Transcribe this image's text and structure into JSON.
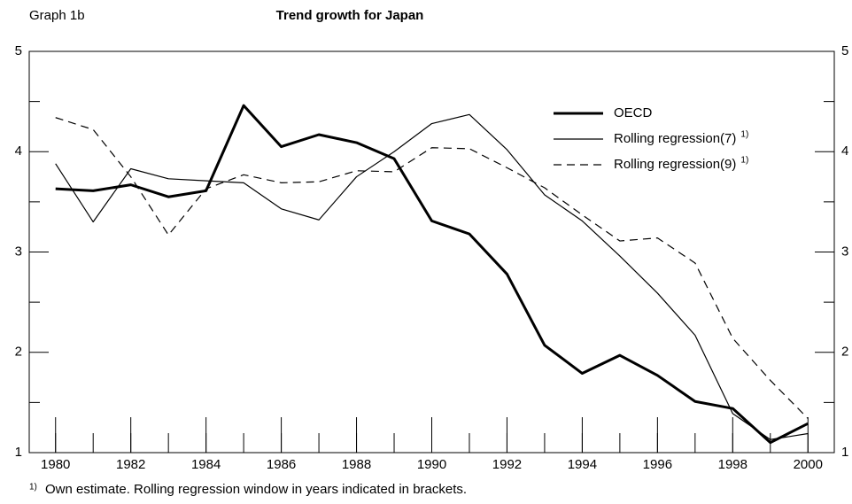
{
  "chart_data": {
    "type": "line",
    "label": "Graph 1b",
    "title": "Trend growth for Japan",
    "x": [
      1980,
      1981,
      1982,
      1983,
      1984,
      1985,
      1986,
      1987,
      1988,
      1989,
      1990,
      1991,
      1992,
      1993,
      1994,
      1995,
      1996,
      1997,
      1998,
      1999,
      2000
    ],
    "series": [
      {
        "name": "OECD",
        "color": "#000000",
        "width": 3,
        "dash": false,
        "values": [
          3.63,
          3.61,
          3.67,
          3.55,
          3.61,
          4.46,
          4.05,
          4.17,
          4.09,
          3.93,
          3.31,
          3.18,
          2.78,
          2.07,
          1.79,
          1.97,
          1.77,
          1.51,
          1.44,
          1.1,
          1.29
        ]
      },
      {
        "name": "Rolling regression(7)",
        "note": "1)",
        "color": "#000000",
        "width": 1.2,
        "dash": false,
        "values": [
          3.88,
          3.3,
          3.83,
          3.73,
          3.71,
          3.69,
          3.43,
          3.32,
          3.75,
          4.0,
          4.28,
          4.37,
          4.02,
          3.57,
          3.31,
          2.96,
          2.59,
          2.17,
          1.39,
          1.13,
          1.19
        ]
      },
      {
        "name": "Rolling regression(9)",
        "note": "1)",
        "color": "#000000",
        "width": 1.2,
        "dash": true,
        "values": [
          4.34,
          4.22,
          3.75,
          3.17,
          3.63,
          3.77,
          3.69,
          3.7,
          3.81,
          3.8,
          4.04,
          4.03,
          3.84,
          3.64,
          3.37,
          3.11,
          3.14,
          2.89,
          2.14,
          1.72,
          1.34
        ]
      }
    ],
    "xlim": [
      1979.3,
      2000.7
    ],
    "xticks": [
      1980,
      1982,
      1984,
      1986,
      1988,
      1990,
      1992,
      1994,
      1996,
      1998,
      2000
    ],
    "ylim": [
      1,
      5
    ],
    "yticks": [
      1,
      2,
      3,
      4,
      5
    ],
    "yticks_minor": [
      1.5,
      2.5,
      3.5,
      4.5
    ],
    "y2lim": [
      1,
      5
    ],
    "y2ticks": [
      1,
      2,
      3,
      4,
      5
    ],
    "legend": "upper right",
    "grid": false,
    "footnote_marker": "1)",
    "footnote": "Own estimate. Rolling regression window in years indicated in brackets."
  }
}
